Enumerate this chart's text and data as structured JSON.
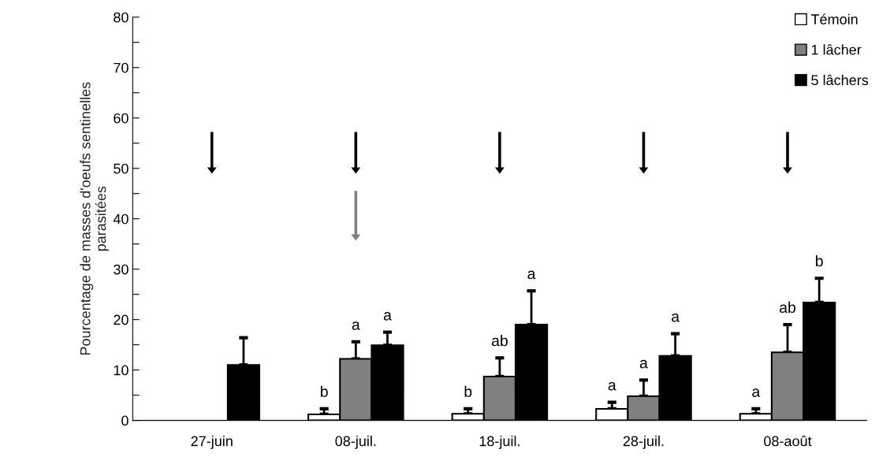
{
  "chart_data": {
    "type": "bar",
    "ylabel": "Pourcentage de masses d'oeufs sentinelles\nparasitées",
    "categories": [
      "27-juin",
      "08-juil.",
      "18-juil.",
      "28-juil.",
      "08-août"
    ],
    "series": [
      {
        "name": "Témoin",
        "color": "#ffffff",
        "values": [
          null,
          1.2,
          1.3,
          2.3,
          1.3
        ],
        "errors": [
          null,
          [
            1.2,
            2.3
          ],
          [
            1.3,
            2.3
          ],
          [
            2.3,
            3.6
          ],
          [
            1.3,
            2.3
          ]
        ],
        "value_labels": [
          null,
          "b",
          "b",
          "a",
          "a"
        ]
      },
      {
        "name": "1 lâcher",
        "color": "#808080",
        "values": [
          null,
          12.2,
          8.7,
          4.8,
          13.5
        ],
        "errors": [
          null,
          [
            12.2,
            15.6
          ],
          [
            8.7,
            12.4
          ],
          [
            4.8,
            8.0
          ],
          [
            13.5,
            19.0
          ]
        ],
        "value_labels": [
          null,
          "a",
          "ab",
          "a",
          "ab"
        ]
      },
      {
        "name": "5 lâchers",
        "color": "#000000",
        "values": [
          11.0,
          14.9,
          19.0,
          12.8,
          23.4
        ],
        "errors": [
          [
            11.0,
            16.4
          ],
          [
            14.9,
            17.5
          ],
          [
            19.0,
            25.7
          ],
          [
            12.8,
            17.2
          ],
          [
            23.4,
            28.2
          ]
        ],
        "value_labels": [
          null,
          "a",
          "a",
          "a",
          "b"
        ]
      }
    ],
    "ylim": [
      0,
      80
    ],
    "yticks": [
      0,
      {
        "value": 5,
        "label": null
      },
      10,
      {
        "value": 15,
        "label": null
      },
      20,
      {
        "value": 25,
        "label": null
      },
      30,
      {
        "value": 35,
        "label": null
      },
      40,
      {
        "value": 45,
        "label": null
      },
      50,
      {
        "value": 55,
        "label": null
      },
      60,
      {
        "value": 65,
        "label": null
      },
      70,
      {
        "value": 75,
        "label": null
      },
      80
    ],
    "legend": "top right",
    "grid": false
  }
}
